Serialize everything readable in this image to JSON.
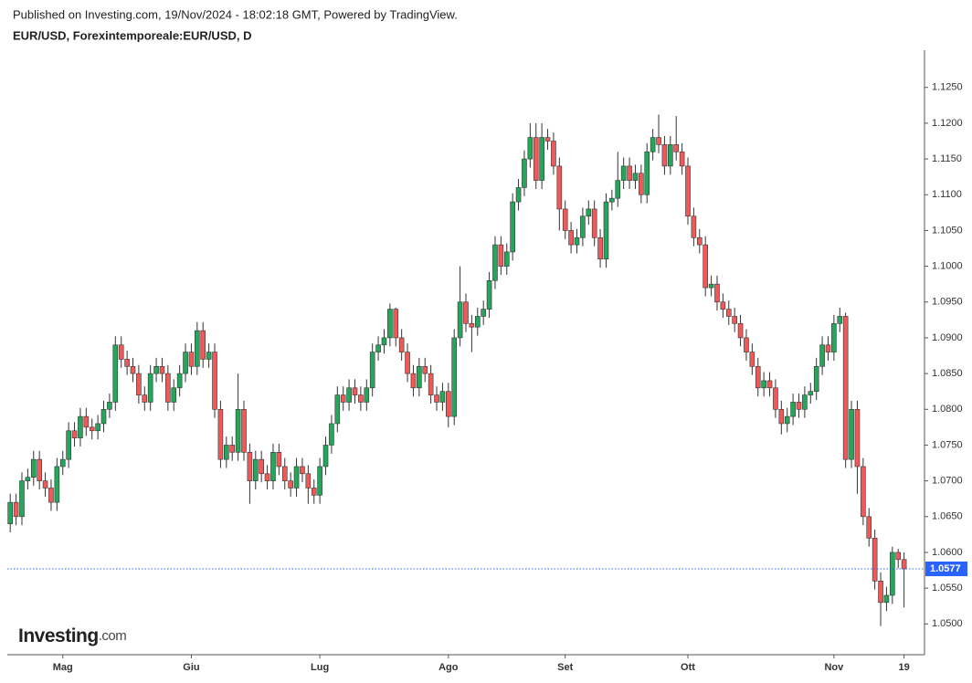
{
  "header": {
    "published": "Published on Investing.com, 19/Nov/2024 - 18:02:18 GMT, Powered by TradingView.",
    "logo": "Investing",
    "logo_suffix": ".com"
  },
  "chart_data": {
    "type": "candlestick",
    "title": "EUR/USD, Forexintemporeale:EUR/USD, D",
    "up_color": "#26a65b",
    "down_color": "#ee5a5a",
    "last_price": 1.0577,
    "last_price_color": "#2962ff",
    "grid": false,
    "ylim": [
      1.0457,
      1.1302
    ],
    "yticks": [
      {
        "value": 1.05,
        "label": "1.0500"
      },
      {
        "value": 1.055,
        "label": "1.0550"
      },
      {
        "value": 1.06,
        "label": "1.0600"
      },
      {
        "value": 1.065,
        "label": "1.0650"
      },
      {
        "value": 1.07,
        "label": "1.0700"
      },
      {
        "value": 1.075,
        "label": "1.0750"
      },
      {
        "value": 1.08,
        "label": "1.0800"
      },
      {
        "value": 1.085,
        "label": "1.0850"
      },
      {
        "value": 1.09,
        "label": "1.0900"
      },
      {
        "value": 1.095,
        "label": "1.0950"
      },
      {
        "value": 1.1,
        "label": "1.1000"
      },
      {
        "value": 1.105,
        "label": "1.1050"
      },
      {
        "value": 1.11,
        "label": "1.1100"
      },
      {
        "value": 1.115,
        "label": "1.1150"
      },
      {
        "value": 1.12,
        "label": "1.1200"
      },
      {
        "value": 1.125,
        "label": "1.1250"
      }
    ],
    "categories": [
      null,
      null,
      null,
      null,
      null,
      null,
      null,
      null,
      null,
      "Mag",
      null,
      null,
      null,
      null,
      null,
      null,
      null,
      null,
      null,
      null,
      null,
      null,
      null,
      null,
      null,
      null,
      null,
      null,
      null,
      null,
      null,
      "Giu",
      null,
      null,
      null,
      null,
      null,
      null,
      null,
      null,
      null,
      null,
      null,
      null,
      null,
      null,
      null,
      null,
      null,
      null,
      null,
      null,
      null,
      "Lug",
      null,
      null,
      null,
      null,
      null,
      null,
      null,
      null,
      null,
      null,
      null,
      null,
      null,
      null,
      null,
      null,
      null,
      null,
      null,
      null,
      null,
      "Ago",
      null,
      null,
      null,
      null,
      null,
      null,
      null,
      null,
      null,
      null,
      null,
      null,
      null,
      null,
      null,
      null,
      null,
      null,
      null,
      "Set",
      null,
      null,
      null,
      null,
      null,
      null,
      null,
      null,
      null,
      null,
      null,
      null,
      null,
      null,
      null,
      null,
      null,
      null,
      null,
      null,
      "Ott",
      null,
      null,
      null,
      null,
      null,
      null,
      null,
      null,
      null,
      null,
      null,
      null,
      null,
      null,
      null,
      null,
      null,
      null,
      null,
      null,
      null,
      null,
      null,
      null,
      "Nov",
      null,
      null,
      null,
      null,
      null,
      null,
      null,
      null,
      null,
      null,
      null,
      "19"
    ],
    "values": [
      [
        1.064,
        1.0682,
        1.0628,
        1.067
      ],
      [
        1.067,
        1.0682,
        1.0638,
        1.065
      ],
      [
        1.065,
        1.0712,
        1.0638,
        1.07
      ],
      [
        1.07,
        1.0717,
        1.0688,
        1.0705
      ],
      [
        1.0705,
        1.0742,
        1.0693,
        1.073
      ],
      [
        1.073,
        1.0742,
        1.0688,
        1.07
      ],
      [
        1.07,
        1.0712,
        1.0678,
        1.069
      ],
      [
        1.069,
        1.0702,
        1.0658,
        1.067
      ],
      [
        1.067,
        1.0732,
        1.0658,
        1.072
      ],
      [
        1.072,
        1.0742,
        1.0708,
        1.073
      ],
      [
        1.073,
        1.0782,
        1.0718,
        1.077
      ],
      [
        1.077,
        1.0782,
        1.0748,
        1.076
      ],
      [
        1.076,
        1.0802,
        1.0748,
        1.079
      ],
      [
        1.079,
        1.0802,
        1.0763,
        1.0775
      ],
      [
        1.0775,
        1.0787,
        1.0758,
        1.077
      ],
      [
        1.077,
        1.0792,
        1.0758,
        1.078
      ],
      [
        1.078,
        1.0812,
        1.0768,
        1.08
      ],
      [
        1.08,
        1.0822,
        1.0788,
        1.081
      ],
      [
        1.081,
        1.0902,
        1.0798,
        1.089
      ],
      [
        1.089,
        1.0902,
        1.0858,
        1.087
      ],
      [
        1.087,
        1.0882,
        1.0848,
        1.086
      ],
      [
        1.086,
        1.0872,
        1.0838,
        1.085
      ],
      [
        1.085,
        1.0862,
        1.0808,
        1.082
      ],
      [
        1.082,
        1.0832,
        1.0798,
        1.081
      ],
      [
        1.081,
        1.0862,
        1.0798,
        1.085
      ],
      [
        1.085,
        1.0872,
        1.0838,
        1.086
      ],
      [
        1.086,
        1.0872,
        1.0838,
        1.085
      ],
      [
        1.085,
        1.0862,
        1.0798,
        1.081
      ],
      [
        1.081,
        1.0842,
        1.0798,
        1.083
      ],
      [
        1.083,
        1.0862,
        1.0818,
        1.085
      ],
      [
        1.085,
        1.0892,
        1.0838,
        1.088
      ],
      [
        1.088,
        1.0892,
        1.0848,
        1.086
      ],
      [
        1.086,
        1.0922,
        1.0848,
        1.091
      ],
      [
        1.091,
        1.0922,
        1.0858,
        1.087
      ],
      [
        1.087,
        1.0892,
        1.0858,
        1.088
      ],
      [
        1.088,
        1.0892,
        1.0788,
        1.08
      ],
      [
        1.08,
        1.0812,
        1.0718,
        1.073
      ],
      [
        1.073,
        1.0762,
        1.0718,
        1.075
      ],
      [
        1.075,
        1.0762,
        1.0728,
        1.074
      ],
      [
        1.074,
        1.085,
        1.0728,
        1.08
      ],
      [
        1.08,
        1.0812,
        1.0728,
        1.074
      ],
      [
        1.074,
        1.0752,
        1.0668,
        1.07
      ],
      [
        1.07,
        1.0742,
        1.0688,
        1.073
      ],
      [
        1.073,
        1.0742,
        1.0698,
        1.071
      ],
      [
        1.071,
        1.0722,
        1.0688,
        1.07
      ],
      [
        1.07,
        1.0752,
        1.0688,
        1.074
      ],
      [
        1.074,
        1.0752,
        1.0708,
        1.072
      ],
      [
        1.072,
        1.0732,
        1.0688,
        1.07
      ],
      [
        1.07,
        1.0712,
        1.0678,
        1.069
      ],
      [
        1.069,
        1.0732,
        1.0678,
        1.072
      ],
      [
        1.072,
        1.0732,
        1.0698,
        1.071
      ],
      [
        1.071,
        1.0722,
        1.0668,
        1.069
      ],
      [
        1.069,
        1.0702,
        1.0668,
        1.068
      ],
      [
        1.068,
        1.0732,
        1.0668,
        1.072
      ],
      [
        1.072,
        1.0762,
        1.0708,
        1.075
      ],
      [
        1.075,
        1.0792,
        1.0738,
        1.078
      ],
      [
        1.078,
        1.0832,
        1.0768,
        1.082
      ],
      [
        1.082,
        1.0832,
        1.0798,
        1.081
      ],
      [
        1.081,
        1.0842,
        1.0798,
        1.083
      ],
      [
        1.083,
        1.0842,
        1.0808,
        1.082
      ],
      [
        1.082,
        1.0832,
        1.0798,
        1.081
      ],
      [
        1.081,
        1.0842,
        1.0798,
        1.083
      ],
      [
        1.083,
        1.0892,
        1.0818,
        1.088
      ],
      [
        1.088,
        1.0902,
        1.0868,
        1.089
      ],
      [
        1.089,
        1.0912,
        1.0878,
        1.09
      ],
      [
        1.09,
        1.0948,
        1.0888,
        1.094
      ],
      [
        1.094,
        1.0942,
        1.0888,
        1.09
      ],
      [
        1.09,
        1.0912,
        1.0868,
        1.088
      ],
      [
        1.088,
        1.0892,
        1.0838,
        1.085
      ],
      [
        1.085,
        1.0862,
        1.0818,
        1.083
      ],
      [
        1.083,
        1.0872,
        1.0818,
        1.086
      ],
      [
        1.086,
        1.0872,
        1.0838,
        1.085
      ],
      [
        1.085,
        1.0862,
        1.0808,
        1.082
      ],
      [
        1.082,
        1.0832,
        1.0798,
        1.081
      ],
      [
        1.081,
        1.0837,
        1.0798,
        1.0825
      ],
      [
        1.0825,
        1.0837,
        1.0775,
        1.079
      ],
      [
        1.079,
        1.0912,
        1.0778,
        1.09
      ],
      [
        1.09,
        1.1,
        1.0888,
        1.095
      ],
      [
        1.095,
        1.0962,
        1.0908,
        1.092
      ],
      [
        1.092,
        1.0932,
        1.088,
        1.0915
      ],
      [
        1.0915,
        1.0942,
        1.0903,
        1.093
      ],
      [
        1.093,
        1.0952,
        1.0918,
        1.094
      ],
      [
        1.094,
        1.0992,
        1.0928,
        1.098
      ],
      [
        1.098,
        1.1042,
        1.0968,
        1.103
      ],
      [
        1.103,
        1.1042,
        1.0988,
        1.1
      ],
      [
        1.1,
        1.1032,
        1.0988,
        1.102
      ],
      [
        1.102,
        1.1102,
        1.1008,
        1.109
      ],
      [
        1.109,
        1.1122,
        1.1078,
        1.111
      ],
      [
        1.111,
        1.1162,
        1.1098,
        1.115
      ],
      [
        1.115,
        1.12,
        1.1138,
        1.118
      ],
      [
        1.118,
        1.12,
        1.1108,
        1.112
      ],
      [
        1.112,
        1.12,
        1.1108,
        1.118
      ],
      [
        1.118,
        1.1192,
        1.1163,
        1.1175
      ],
      [
        1.1175,
        1.1187,
        1.1128,
        1.114
      ],
      [
        1.114,
        1.1152,
        1.105,
        1.108
      ],
      [
        1.108,
        1.1092,
        1.1038,
        1.105
      ],
      [
        1.105,
        1.1062,
        1.1018,
        1.103
      ],
      [
        1.103,
        1.1052,
        1.1018,
        1.104
      ],
      [
        1.104,
        1.1082,
        1.1028,
        1.107
      ],
      [
        1.107,
        1.1092,
        1.1058,
        1.108
      ],
      [
        1.108,
        1.1092,
        1.1028,
        1.104
      ],
      [
        1.104,
        1.1052,
        1.0998,
        1.101
      ],
      [
        1.101,
        1.1102,
        1.0998,
        1.109
      ],
      [
        1.109,
        1.1107,
        1.1078,
        1.1095
      ],
      [
        1.1095,
        1.116,
        1.1083,
        1.112
      ],
      [
        1.112,
        1.1152,
        1.1108,
        1.114
      ],
      [
        1.114,
        1.1152,
        1.1108,
        1.112
      ],
      [
        1.112,
        1.1142,
        1.1108,
        1.113
      ],
      [
        1.113,
        1.1142,
        1.1088,
        1.11
      ],
      [
        1.11,
        1.1172,
        1.1088,
        1.116
      ],
      [
        1.116,
        1.1192,
        1.1148,
        1.118
      ],
      [
        1.118,
        1.1212,
        1.1158,
        1.117
      ],
      [
        1.117,
        1.1182,
        1.1128,
        1.114
      ],
      [
        1.114,
        1.1182,
        1.1128,
        1.117
      ],
      [
        1.117,
        1.121,
        1.1148,
        1.116
      ],
      [
        1.116,
        1.1172,
        1.1128,
        1.114
      ],
      [
        1.114,
        1.1152,
        1.1058,
        1.107
      ],
      [
        1.107,
        1.1082,
        1.1028,
        1.104
      ],
      [
        1.104,
        1.1052,
        1.1018,
        1.103
      ],
      [
        1.103,
        1.1042,
        1.0958,
        1.097
      ],
      [
        1.097,
        1.0987,
        1.0958,
        1.0975
      ],
      [
        1.0975,
        1.0987,
        1.0938,
        1.095
      ],
      [
        1.095,
        1.0962,
        1.0928,
        1.094
      ],
      [
        1.094,
        1.0952,
        1.0918,
        1.093
      ],
      [
        1.093,
        1.0942,
        1.0908,
        1.092
      ],
      [
        1.092,
        1.0932,
        1.0888,
        1.09
      ],
      [
        1.09,
        1.0912,
        1.0868,
        1.088
      ],
      [
        1.088,
        1.0892,
        1.0848,
        1.086
      ],
      [
        1.086,
        1.0872,
        1.0818,
        1.083
      ],
      [
        1.083,
        1.0852,
        1.0818,
        1.084
      ],
      [
        1.084,
        1.0852,
        1.0818,
        1.083
      ],
      [
        1.083,
        1.0842,
        1.0788,
        1.08
      ],
      [
        1.08,
        1.0812,
        1.0765,
        1.078
      ],
      [
        1.078,
        1.0802,
        1.0768,
        1.079
      ],
      [
        1.079,
        1.0822,
        1.0778,
        1.081
      ],
      [
        1.081,
        1.0822,
        1.0788,
        1.08
      ],
      [
        1.08,
        1.0832,
        1.0788,
        1.082
      ],
      [
        1.082,
        1.0837,
        1.0808,
        1.0825
      ],
      [
        1.0825,
        1.0872,
        1.0813,
        1.086
      ],
      [
        1.086,
        1.0902,
        1.0848,
        1.089
      ],
      [
        1.089,
        1.0902,
        1.0868,
        1.088
      ],
      [
        1.088,
        1.0932,
        1.0868,
        1.092
      ],
      [
        1.092,
        1.0942,
        1.0908,
        1.093
      ],
      [
        1.093,
        1.0935,
        1.0718,
        1.073
      ],
      [
        1.073,
        1.0812,
        1.0718,
        1.08
      ],
      [
        1.08,
        1.0812,
        1.0682,
        1.072
      ],
      [
        1.072,
        1.0732,
        1.0638,
        1.065
      ],
      [
        1.065,
        1.0662,
        1.0608,
        1.062
      ],
      [
        1.062,
        1.0632,
        1.0548,
        1.056
      ],
      [
        1.056,
        1.0572,
        1.0497,
        1.053
      ],
      [
        1.053,
        1.0552,
        1.0518,
        1.054
      ],
      [
        1.054,
        1.0608,
        1.0528,
        1.06
      ],
      [
        1.06,
        1.0605,
        1.0578,
        1.059
      ],
      [
        1.059,
        1.06,
        1.0523,
        1.0577
      ]
    ]
  }
}
